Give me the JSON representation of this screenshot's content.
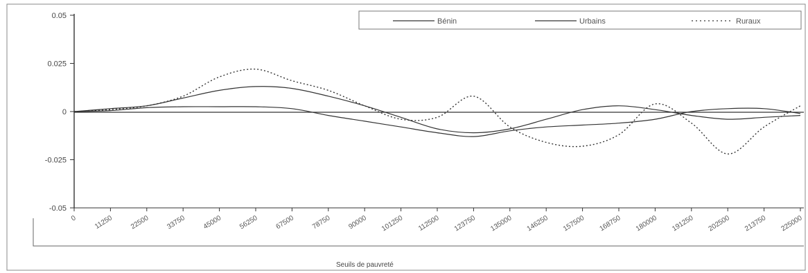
{
  "chart_data": {
    "type": "line",
    "xlabel": "Seuils de pauvreté",
    "ylabel": "",
    "ylim": [
      -0.05,
      0.05
    ],
    "y_ticks": [
      "0.05",
      "0.025",
      "0",
      "-0.025",
      "-0.05"
    ],
    "categories": [
      "0",
      "11250",
      "22500",
      "33750",
      "45000",
      "56250",
      "67500",
      "78750",
      "90000",
      "101250",
      "112500",
      "123750",
      "135000",
      "146250",
      "157500",
      "168750",
      "180000",
      "191250",
      "202500",
      "213750",
      "225000"
    ],
    "legend_position": "top-right",
    "grid": false,
    "series": [
      {
        "name": "Bénin",
        "style": "solid",
        "color": "#333333",
        "values": [
          0.0,
          0.0015,
          0.003,
          0.007,
          0.011,
          0.013,
          0.012,
          0.008,
          0.003,
          -0.003,
          -0.009,
          -0.011,
          -0.009,
          -0.004,
          0.001,
          0.003,
          0.001,
          -0.002,
          -0.004,
          -0.003,
          -0.002
        ]
      },
      {
        "name": "Urbains",
        "style": "solid",
        "color": "#333333",
        "values": [
          0.0,
          0.0005,
          0.002,
          0.0025,
          0.0025,
          0.0025,
          0.0015,
          -0.002,
          -0.005,
          -0.008,
          -0.011,
          -0.013,
          -0.01,
          -0.008,
          -0.007,
          -0.006,
          -0.004,
          0.0,
          0.0015,
          0.0015,
          -0.001
        ]
      },
      {
        "name": "Ruraux",
        "style": "dotted",
        "color": "#333333",
        "values": [
          0.0,
          0.001,
          0.003,
          0.008,
          0.018,
          0.022,
          0.016,
          0.011,
          0.003,
          -0.004,
          -0.003,
          0.008,
          -0.008,
          -0.016,
          -0.018,
          -0.012,
          0.004,
          -0.006,
          -0.022,
          -0.008,
          0.003
        ]
      }
    ]
  }
}
